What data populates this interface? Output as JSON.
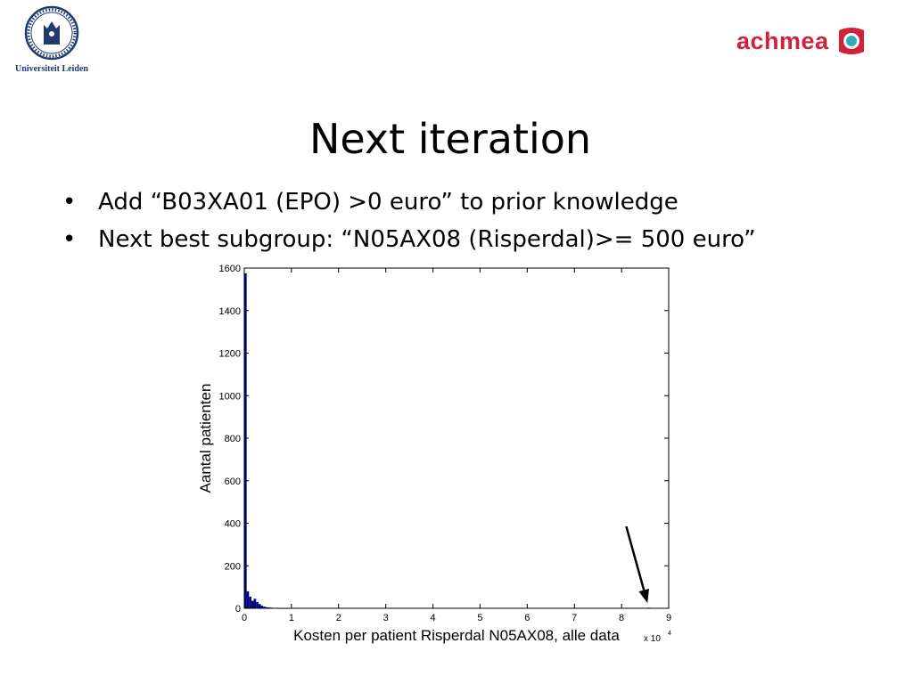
{
  "header": {
    "university_name": "Universiteit Leiden",
    "company_name": "achmea"
  },
  "slide": {
    "title": "Next iteration",
    "bullets": [
      "Add “B03XA01 (EPO) >0 euro” to prior knowledge",
      "Next best subgroup: “N05AX08 (Risperdal)>= 500 euro”"
    ]
  },
  "colors": {
    "bar": "#00007f",
    "achmea_red": "#d0233b",
    "achmea_teal": "#3aa7b8",
    "leiden_blue": "#1e3a6e"
  },
  "chart_data": {
    "type": "bar",
    "xlabel": "Kosten per patient Risperdal N05AX08, alle data",
    "ylabel": "Aantal patienten",
    "x_multiplier_label": "x 10",
    "x_multiplier_exponent": "4",
    "xlim": [
      0,
      9
    ],
    "ylim": [
      0,
      1600
    ],
    "xticks": [
      0,
      1,
      2,
      3,
      4,
      5,
      6,
      7,
      8,
      9
    ],
    "yticks": [
      0,
      200,
      400,
      600,
      800,
      1000,
      1200,
      1400,
      1600
    ],
    "bin_width": 0.05,
    "bins": [
      {
        "x": 0.0,
        "count": 1575
      },
      {
        "x": 0.05,
        "count": 80
      },
      {
        "x": 0.1,
        "count": 55
      },
      {
        "x": 0.15,
        "count": 35
      },
      {
        "x": 0.2,
        "count": 45
      },
      {
        "x": 0.25,
        "count": 30
      },
      {
        "x": 0.3,
        "count": 20
      },
      {
        "x": 0.35,
        "count": 12
      },
      {
        "x": 0.4,
        "count": 8
      },
      {
        "x": 0.45,
        "count": 5
      },
      {
        "x": 0.5,
        "count": 4
      },
      {
        "x": 0.55,
        "count": 3
      },
      {
        "x": 0.6,
        "count": 2
      },
      {
        "x": 0.65,
        "count": 2
      },
      {
        "x": 0.7,
        "count": 1
      },
      {
        "x": 0.8,
        "count": 1
      },
      {
        "x": 0.9,
        "count": 1
      },
      {
        "x": 1.0,
        "count": 1
      },
      {
        "x": 8.55,
        "count": 3
      }
    ],
    "annotation": {
      "type": "arrow",
      "from": [
        8.1,
        385
      ],
      "to": [
        8.55,
        25
      ]
    },
    "grid": false
  }
}
